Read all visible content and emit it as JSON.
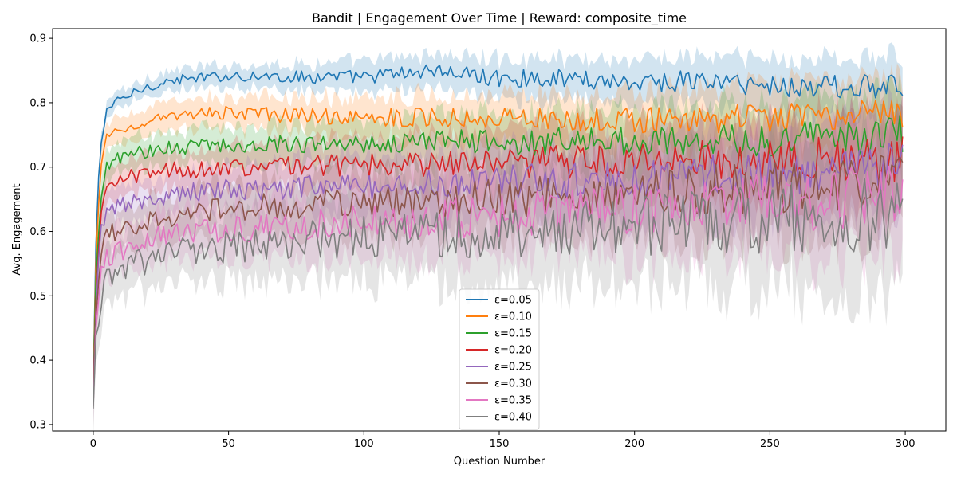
{
  "chart_data": {
    "type": "line",
    "title": "Bandit | Engagement Over Time | Reward: composite_time",
    "xlabel": "Question Number",
    "ylabel": "Avg. Engagement",
    "xlim": [
      -15,
      315
    ],
    "ylim": [
      0.29,
      0.915
    ],
    "xticks": [
      0,
      50,
      100,
      150,
      200,
      250,
      300
    ],
    "yticks": [
      0.3,
      0.4,
      0.5,
      0.6,
      0.7,
      0.8,
      0.9
    ],
    "x_points": 300,
    "grid": false,
    "legend_position": "lower center",
    "series": [
      {
        "name": "ε=0.05",
        "color": "#1f77b4",
        "start": 0.36,
        "plateau": 0.84,
        "drift": -0.02,
        "noise": 0.004,
        "band_base": 0.012,
        "band_growth": 0.035,
        "x": [
          0,
          1,
          2,
          3,
          5,
          10,
          20,
          30,
          40,
          50,
          75,
          100,
          125,
          150,
          175,
          200,
          225,
          250,
          275,
          299
        ],
        "y": [
          0.36,
          0.58,
          0.68,
          0.74,
          0.79,
          0.805,
          0.825,
          0.835,
          0.838,
          0.842,
          0.84,
          0.84,
          0.85,
          0.838,
          0.838,
          0.832,
          0.834,
          0.826,
          0.825,
          0.823
        ]
      },
      {
        "name": "ε=0.10",
        "color": "#ff7f0e",
        "start": 0.36,
        "plateau": 0.785,
        "drift": -0.01,
        "noise": 0.005,
        "band_base": 0.018,
        "band_growth": 0.04,
        "x": [
          0,
          1,
          2,
          3,
          5,
          10,
          20,
          30,
          40,
          50,
          75,
          100,
          125,
          150,
          175,
          200,
          225,
          250,
          275,
          299
        ],
        "y": [
          0.36,
          0.55,
          0.64,
          0.7,
          0.75,
          0.76,
          0.77,
          0.778,
          0.782,
          0.785,
          0.78,
          0.778,
          0.778,
          0.776,
          0.775,
          0.772,
          0.774,
          0.775,
          0.778,
          0.78
        ]
      },
      {
        "name": "ε=0.15",
        "color": "#2ca02c",
        "start": 0.355,
        "plateau": 0.735,
        "drift": 0.01,
        "noise": 0.006,
        "band_base": 0.022,
        "band_growth": 0.045,
        "x": [
          0,
          1,
          2,
          3,
          5,
          10,
          20,
          30,
          40,
          50,
          75,
          100,
          125,
          150,
          175,
          200,
          225,
          250,
          275,
          299
        ],
        "y": [
          0.355,
          0.52,
          0.6,
          0.66,
          0.705,
          0.715,
          0.725,
          0.73,
          0.733,
          0.735,
          0.737,
          0.738,
          0.74,
          0.738,
          0.74,
          0.742,
          0.742,
          0.744,
          0.746,
          0.75
        ]
      },
      {
        "name": "ε=0.20",
        "color": "#d62728",
        "start": 0.35,
        "plateau": 0.7,
        "drift": 0.012,
        "noise": 0.007,
        "band_base": 0.025,
        "band_growth": 0.05,
        "x": [
          0,
          1,
          2,
          3,
          5,
          10,
          20,
          30,
          40,
          50,
          75,
          100,
          125,
          150,
          175,
          200,
          225,
          250,
          275,
          299
        ],
        "y": [
          0.35,
          0.5,
          0.58,
          0.63,
          0.665,
          0.68,
          0.69,
          0.695,
          0.698,
          0.7,
          0.703,
          0.705,
          0.706,
          0.707,
          0.708,
          0.71,
          0.712,
          0.712,
          0.714,
          0.712
        ]
      },
      {
        "name": "ε=0.25",
        "color": "#9467bd",
        "start": 0.35,
        "plateau": 0.665,
        "drift": 0.025,
        "noise": 0.008,
        "band_base": 0.028,
        "band_growth": 0.055,
        "x": [
          0,
          1,
          2,
          3,
          5,
          10,
          20,
          30,
          40,
          50,
          75,
          100,
          125,
          150,
          175,
          200,
          225,
          250,
          275,
          299
        ],
        "y": [
          0.35,
          0.48,
          0.55,
          0.6,
          0.63,
          0.64,
          0.652,
          0.657,
          0.662,
          0.665,
          0.668,
          0.672,
          0.675,
          0.677,
          0.68,
          0.683,
          0.688,
          0.692,
          0.695,
          0.7
        ]
      },
      {
        "name": "ε=0.30",
        "color": "#8c564b",
        "start": 0.345,
        "plateau": 0.635,
        "drift": 0.035,
        "noise": 0.009,
        "band_base": 0.03,
        "band_growth": 0.06,
        "x": [
          0,
          1,
          2,
          3,
          5,
          10,
          20,
          30,
          40,
          50,
          75,
          100,
          125,
          150,
          175,
          200,
          225,
          250,
          275,
          299
        ],
        "y": [
          0.345,
          0.46,
          0.52,
          0.57,
          0.595,
          0.605,
          0.615,
          0.623,
          0.63,
          0.635,
          0.64,
          0.645,
          0.648,
          0.652,
          0.655,
          0.66,
          0.665,
          0.668,
          0.672,
          0.675
        ]
      },
      {
        "name": "ε=0.35",
        "color": "#e377c2",
        "start": 0.345,
        "plateau": 0.605,
        "drift": 0.04,
        "noise": 0.01,
        "band_base": 0.032,
        "band_growth": 0.065,
        "x": [
          0,
          1,
          2,
          3,
          5,
          10,
          20,
          30,
          40,
          50,
          75,
          100,
          125,
          150,
          175,
          200,
          225,
          250,
          275,
          299
        ],
        "y": [
          0.345,
          0.44,
          0.5,
          0.54,
          0.56,
          0.57,
          0.585,
          0.595,
          0.6,
          0.605,
          0.61,
          0.615,
          0.62,
          0.625,
          0.63,
          0.635,
          0.64,
          0.645,
          0.65,
          0.652
        ]
      },
      {
        "name": "ε=0.40",
        "color": "#7f7f7f",
        "start": 0.34,
        "plateau": 0.575,
        "drift": 0.05,
        "noise": 0.012,
        "band_base": 0.04,
        "band_growth": 0.08,
        "x": [
          0,
          1,
          2,
          3,
          5,
          10,
          20,
          30,
          40,
          50,
          75,
          100,
          125,
          150,
          175,
          200,
          225,
          250,
          275,
          299
        ],
        "y": [
          0.34,
          0.42,
          0.47,
          0.5,
          0.525,
          0.54,
          0.555,
          0.565,
          0.572,
          0.575,
          0.585,
          0.59,
          0.595,
          0.6,
          0.605,
          0.61,
          0.615,
          0.62,
          0.625,
          0.625
        ]
      }
    ]
  }
}
